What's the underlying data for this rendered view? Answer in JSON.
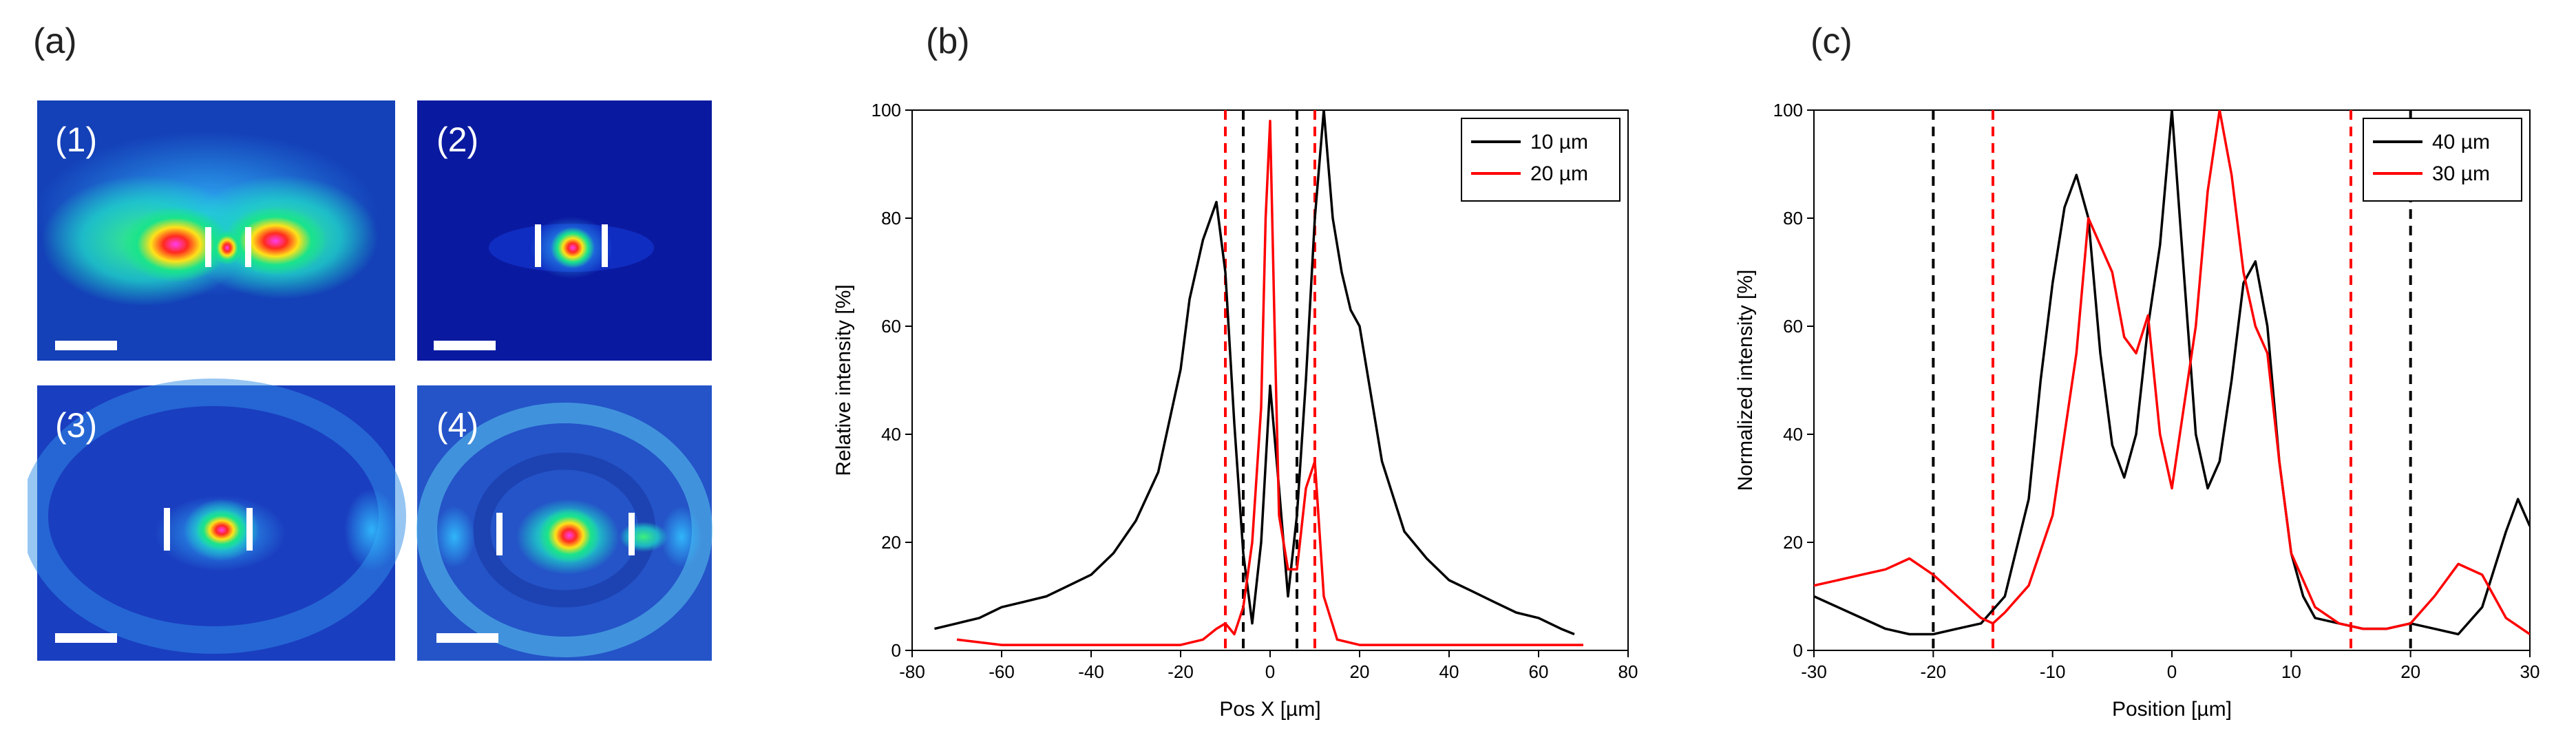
{
  "panel_labels": [
    "(a)",
    "(b)",
    "(c)"
  ],
  "images": {
    "sub_labels": [
      "(1)",
      "(2)",
      "(3)",
      "(4)"
    ],
    "colors": {
      "low": "#0a1f9c",
      "mid": "#19e38c",
      "high": "#ff2a1f",
      "peak": "#ff4de0",
      "bar": "#ffffff"
    }
  },
  "chart_data": [
    {
      "type": "line",
      "xlabel": "Pos X [µm]",
      "ylabel": "Relative intensity [%]",
      "xlim": [
        -80,
        80
      ],
      "ylim": [
        0,
        100
      ],
      "xticks": [
        -80,
        -60,
        -40,
        -20,
        0,
        20,
        40,
        60,
        80
      ],
      "yticks": [
        0,
        20,
        40,
        60,
        80,
        100
      ],
      "legend_position": "top-right",
      "series": [
        {
          "name": "10 µm",
          "color": "#000000",
          "x": [
            -75,
            -70,
            -65,
            -60,
            -55,
            -50,
            -45,
            -40,
            -35,
            -30,
            -25,
            -20,
            -18,
            -15,
            -12,
            -10,
            -8,
            -6,
            -4,
            -2,
            0,
            2,
            4,
            6,
            8,
            10,
            12,
            14,
            16,
            18,
            20,
            25,
            30,
            35,
            40,
            45,
            50,
            55,
            60,
            65,
            68
          ],
          "y": [
            4,
            5,
            6,
            8,
            9,
            10,
            12,
            14,
            18,
            24,
            33,
            52,
            65,
            76,
            83,
            70,
            42,
            18,
            5,
            20,
            49,
            30,
            10,
            25,
            50,
            80,
            100,
            80,
            70,
            63,
            60,
            35,
            22,
            17,
            13,
            11,
            9,
            7,
            6,
            4,
            3
          ]
        },
        {
          "name": "20 µm",
          "color": "#ff0000",
          "x": [
            -70,
            -60,
            -50,
            -40,
            -30,
            -20,
            -15,
            -12,
            -10,
            -8,
            -6,
            -4,
            -2,
            -1,
            0,
            1,
            2,
            4,
            6,
            8,
            10,
            12,
            15,
            20,
            30,
            40,
            50,
            60,
            70
          ],
          "y": [
            2,
            1,
            1,
            1,
            1,
            1,
            2,
            4,
            5,
            3,
            8,
            20,
            45,
            80,
            98,
            60,
            25,
            15,
            15,
            30,
            35,
            10,
            2,
            1,
            1,
            1,
            1,
            1,
            1
          ]
        }
      ],
      "vlines": [
        {
          "x": -10,
          "color": "#ff0000"
        },
        {
          "x": -6,
          "color": "#000000"
        },
        {
          "x": 6,
          "color": "#000000"
        },
        {
          "x": 10,
          "color": "#ff0000"
        }
      ]
    },
    {
      "type": "line",
      "xlabel": "Position [µm]",
      "ylabel": "Normalized intensity [%]",
      "xlim": [
        -30,
        30
      ],
      "ylim": [
        0,
        100
      ],
      "xticks": [
        -30,
        -20,
        -10,
        0,
        10,
        20,
        30
      ],
      "yticks": [
        0,
        20,
        40,
        60,
        80,
        100
      ],
      "legend_position": "top-right",
      "series": [
        {
          "name": "40 µm",
          "color": "#000000",
          "x": [
            -30,
            -28,
            -26,
            -24,
            -22,
            -20,
            -18,
            -16,
            -14,
            -12,
            -11,
            -10,
            -9,
            -8,
            -7,
            -6,
            -5,
            -4,
            -3,
            -2,
            -1,
            0,
            1,
            2,
            3,
            4,
            5,
            6,
            7,
            8,
            9,
            10,
            11,
            12,
            14,
            16,
            18,
            20,
            22,
            24,
            26,
            28,
            29,
            30
          ],
          "y": [
            10,
            8,
            6,
            4,
            3,
            3,
            4,
            5,
            10,
            28,
            50,
            68,
            82,
            88,
            80,
            55,
            38,
            32,
            40,
            60,
            75,
            100,
            70,
            40,
            30,
            35,
            50,
            68,
            72,
            60,
            35,
            18,
            10,
            6,
            5,
            4,
            4,
            5,
            4,
            3,
            8,
            22,
            28,
            23
          ]
        },
        {
          "name": "30 µm",
          "color": "#ff0000",
          "x": [
            -30,
            -28,
            -26,
            -24,
            -22,
            -20,
            -18,
            -16,
            -15,
            -14,
            -12,
            -10,
            -9,
            -8,
            -7,
            -6,
            -5,
            -4,
            -3,
            -2,
            -1,
            0,
            1,
            2,
            3,
            4,
            5,
            6,
            7,
            8,
            9,
            10,
            12,
            14,
            16,
            18,
            20,
            22,
            24,
            26,
            28,
            30
          ],
          "y": [
            12,
            13,
            14,
            15,
            17,
            14,
            10,
            6,
            5,
            7,
            12,
            25,
            40,
            55,
            80,
            75,
            70,
            58,
            55,
            62,
            40,
            30,
            45,
            60,
            85,
            100,
            88,
            70,
            60,
            55,
            35,
            18,
            8,
            5,
            4,
            4,
            5,
            10,
            16,
            14,
            6,
            3
          ]
        }
      ],
      "vlines": [
        {
          "x": -20,
          "color": "#000000"
        },
        {
          "x": -15,
          "color": "#ff0000"
        },
        {
          "x": 15,
          "color": "#ff0000"
        },
        {
          "x": 20,
          "color": "#000000"
        }
      ]
    }
  ]
}
